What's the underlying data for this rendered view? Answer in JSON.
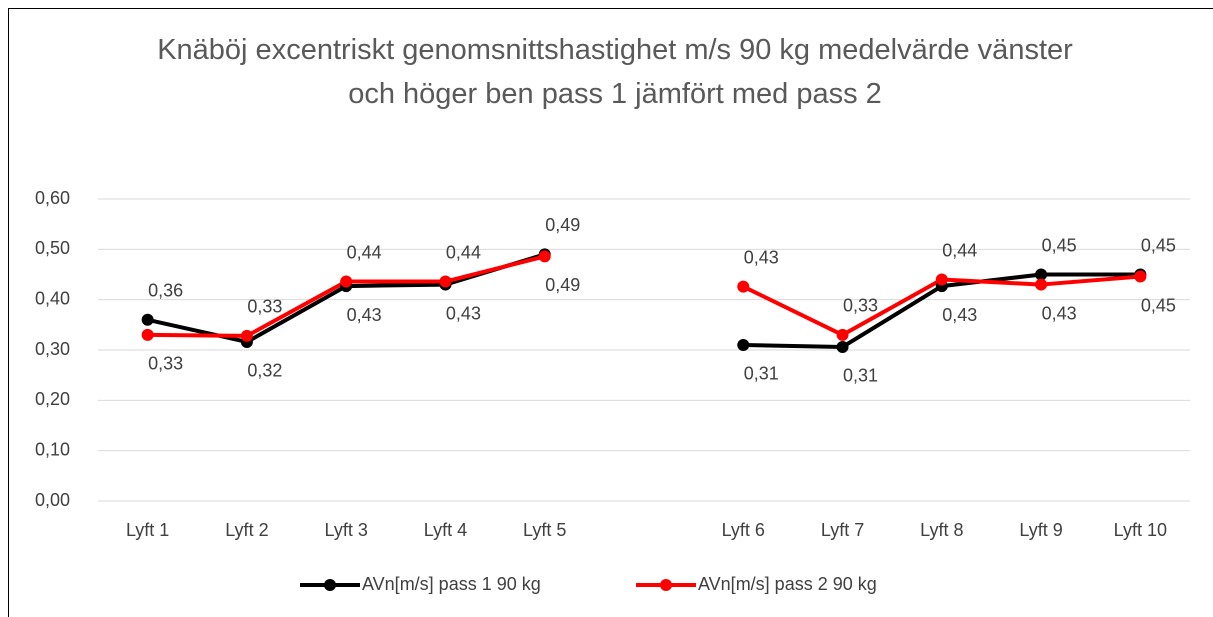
{
  "chart_data": {
    "type": "line",
    "title": "Knäböj excentriskt genomsnittshastighet m/s 90 kg medelvärde vänster och höger ben pass 1 jämfört med pass 2",
    "categories": [
      "Lyft 1",
      "Lyft 2",
      "Lyft 3",
      "Lyft 4",
      "Lyft 5",
      null,
      "Lyft 6",
      "Lyft 7",
      "Lyft 8",
      "Lyft 9",
      "Lyft 10"
    ],
    "series": [
      {
        "name": "AVn[m/s] pass 1 90 kg",
        "color": "#000000",
        "values": [
          0.36,
          0.316,
          0.427,
          0.43,
          0.49,
          null,
          0.31,
          0.306,
          0.427,
          0.45,
          0.45
        ],
        "value_labels": [
          "0,36",
          "0,32",
          "0,43",
          "0,43",
          "0,49",
          null,
          "0,31",
          "0,31",
          "0,43",
          "0,45",
          "0,45"
        ]
      },
      {
        "name": "AVn[m/s] pass 2 90 kg",
        "color": "#ff0000",
        "values": [
          0.33,
          0.328,
          0.436,
          0.436,
          0.486,
          null,
          0.426,
          0.33,
          0.44,
          0.43,
          0.446
        ],
        "value_labels": [
          "0,33",
          "0,33",
          "0,44",
          "0,44",
          "0,49",
          null,
          "0,43",
          "0,33",
          "0,44",
          "0,43",
          "0,45"
        ]
      }
    ],
    "ylim": [
      0,
      0.6
    ],
    "yticks": [
      {
        "value": 0,
        "label": "0,00"
      },
      {
        "value": 0.1,
        "label": "0,10"
      },
      {
        "value": 0.2,
        "label": "0,20"
      },
      {
        "value": 0.3,
        "label": "0,30"
      },
      {
        "value": 0.4,
        "label": "0,40"
      },
      {
        "value": 0.5,
        "label": "0,50"
      },
      {
        "value": 0.6,
        "label": "0,60"
      }
    ],
    "grid": true,
    "legend": "bottom"
  }
}
